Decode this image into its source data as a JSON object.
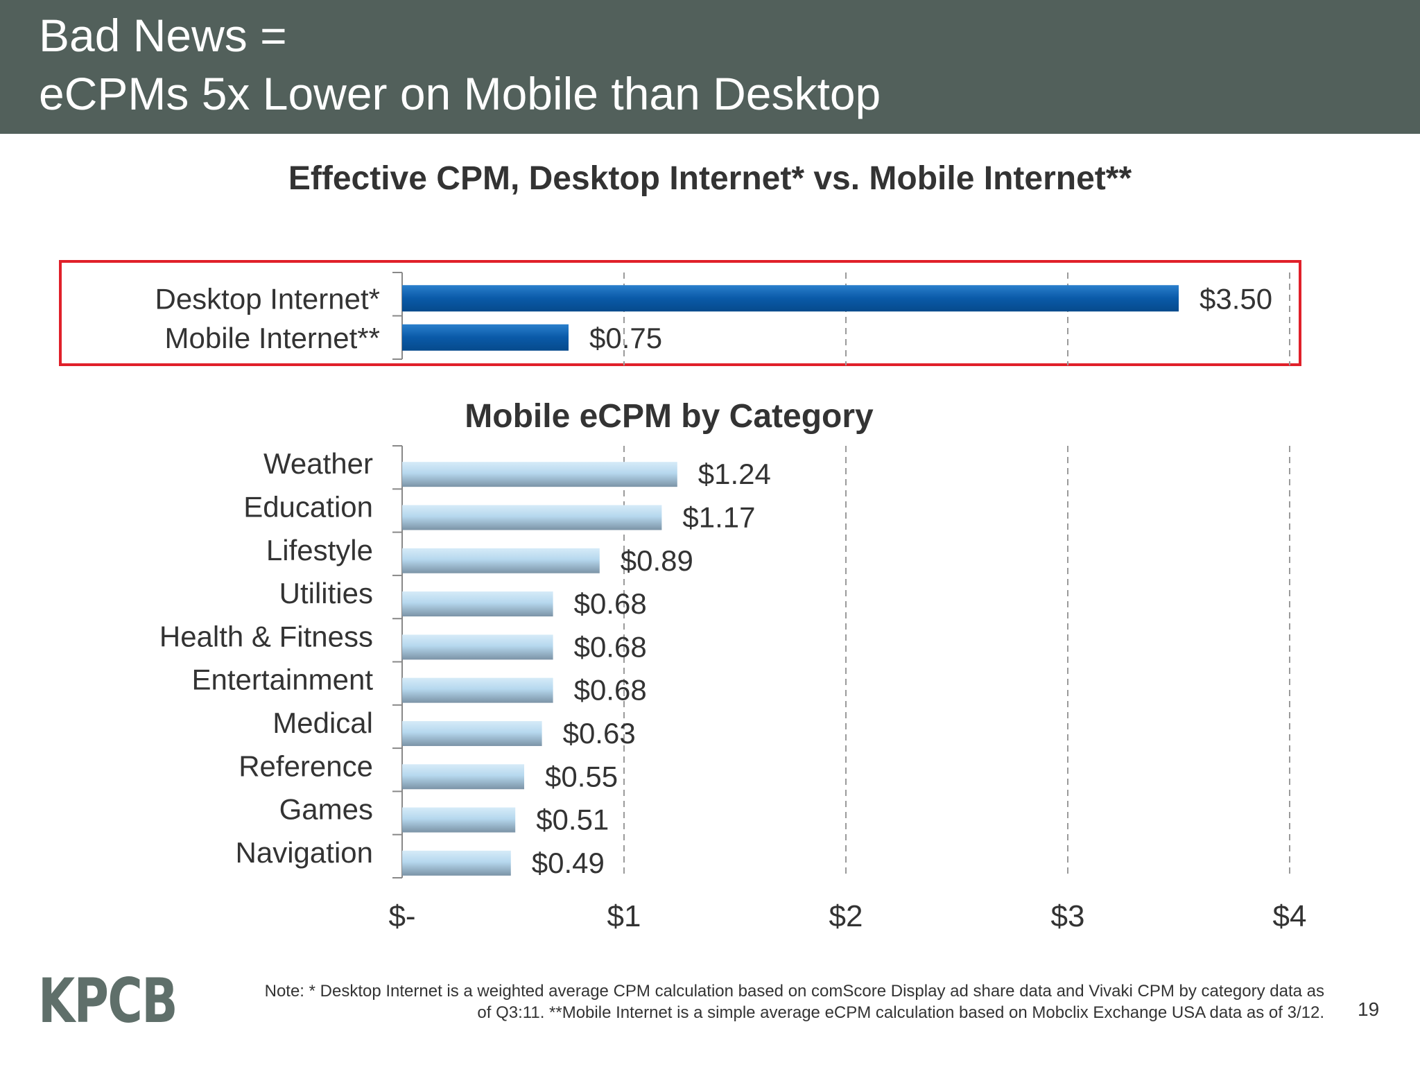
{
  "header": {
    "title_line1": "Bad News =",
    "title_line2": "eCPMs 5x Lower on Mobile than Desktop",
    "background": "#52605b"
  },
  "chart_data": [
    {
      "type": "bar",
      "orientation": "horizontal",
      "title": "Effective CPM, Desktop Internet* vs. Mobile Internet**",
      "categories": [
        "Desktop Internet*",
        "Mobile Internet**"
      ],
      "values": [
        3.5,
        0.75
      ],
      "value_labels": [
        "$3.50",
        "$0.75"
      ],
      "xlim": [
        0,
        4
      ],
      "x_ticks": [
        "$-",
        "$1",
        "$2",
        "$3",
        "$4"
      ],
      "grid": "vertical dashed",
      "highlight": true,
      "colors": {
        "bar": "#0a5aa8",
        "highlight_border": "#e0202a"
      }
    },
    {
      "type": "bar",
      "orientation": "horizontal",
      "title": "Mobile eCPM by Category",
      "categories": [
        "Weather",
        "Education",
        "Lifestyle",
        "Utilities",
        "Health & Fitness",
        "Entertainment",
        "Medical",
        "Reference",
        "Games",
        "Navigation"
      ],
      "values": [
        1.24,
        1.17,
        0.89,
        0.68,
        0.68,
        0.68,
        0.63,
        0.55,
        0.51,
        0.49
      ],
      "value_labels": [
        "$1.24",
        "$1.17",
        "$0.89",
        "$0.68",
        "$0.68",
        "$0.68",
        "$0.63",
        "$0.55",
        "$0.51",
        "$0.49"
      ],
      "xlim": [
        0,
        4
      ],
      "x_ticks": [
        "$-",
        "$1",
        "$2",
        "$3",
        "$4"
      ],
      "grid": "vertical dashed",
      "colors": {
        "bar": "#a9cde6"
      }
    }
  ],
  "footer": {
    "logo": "KPCB",
    "note_line1": "Note: * Desktop Internet is a weighted average CPM calculation based on comScore Display ad share data and Vivaki CPM by category data as",
    "note_line2": "of Q3:11. **Mobile Internet is a simple average eCPM calculation based on Mobclix Exchange USA data as of 3/12.",
    "page_number": "19"
  }
}
